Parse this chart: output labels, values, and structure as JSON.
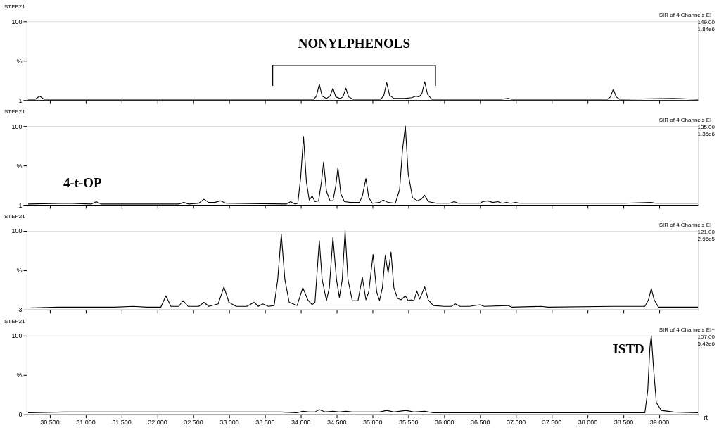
{
  "chart_data": [
    {
      "type": "line",
      "title": "STEP21",
      "subtitle": "SIR of 4 Channels EI+",
      "annotations": [
        "149.00",
        "1.84e6",
        "NONYLPHENOLS"
      ],
      "xlim": [
        30.18,
        39.54
      ],
      "ylim": [
        1,
        100
      ],
      "yticks": [
        100,
        {
          "value": 50.5,
          "label": "%"
        },
        1
      ],
      "tick_labels": "y",
      "xticks": [
        {
          "value": 30.5,
          "label": null
        },
        {
          "value": 31,
          "label": null
        },
        {
          "value": 31.5,
          "label": null
        },
        {
          "value": 32,
          "label": null
        },
        {
          "value": 32.5,
          "label": null
        },
        {
          "value": 33,
          "label": null
        },
        {
          "value": 33.5,
          "label": null
        },
        {
          "value": 34,
          "label": null
        },
        {
          "value": 34.5,
          "label": null
        },
        {
          "value": 35,
          "label": null
        },
        {
          "value": 35.5,
          "label": null
        },
        {
          "value": 36,
          "label": null
        },
        {
          "value": 36.5,
          "label": null
        },
        {
          "value": 37,
          "label": null
        },
        {
          "value": 37.5,
          "label": null
        },
        {
          "value": 38,
          "label": null
        },
        {
          "value": 38.5,
          "label": null
        },
        {
          "value": 39,
          "label": null
        }
      ],
      "grid": false,
      "legend": false,
      "series": [
        {
          "color": "#000000",
          "x": [
            30.2,
            30.3,
            30.36,
            30.42,
            31.5,
            32.5,
            33.5,
            34.18,
            34.22,
            34.26,
            34.3,
            34.36,
            34.41,
            34.45,
            34.49,
            34.55,
            34.59,
            34.63,
            34.67,
            34.73,
            35.12,
            35.16,
            35.2,
            35.24,
            35.3,
            35.45,
            35.55,
            35.61,
            35.65,
            35.69,
            35.73,
            35.77,
            35.83,
            36.8,
            36.89,
            36.95,
            38.28,
            38.32,
            38.36,
            38.4,
            38.45,
            39.2,
            39.54
          ],
          "values": [
            2,
            2,
            6,
            2,
            2,
            2,
            2,
            2,
            6,
            21,
            6,
            3,
            6,
            16,
            5,
            3,
            5,
            16,
            5,
            2,
            2,
            7,
            23,
            7,
            3,
            3,
            4,
            6,
            5,
            9,
            24,
            8,
            2,
            2,
            3,
            2,
            2,
            5,
            15,
            5,
            2,
            3,
            2
          ]
        }
      ]
    },
    {
      "type": "line",
      "title": "STEP21",
      "subtitle": "SIR of 4 Channels EI+",
      "annotations": [
        "135.00",
        "1.35e6",
        "4-t-OP"
      ],
      "xlim": [
        30.18,
        39.54
      ],
      "ylim": [
        1,
        100
      ],
      "yticks": [
        100,
        {
          "value": 50.5,
          "label": "%"
        },
        1
      ],
      "tick_labels": "y",
      "xticks": [
        {
          "value": 30.5,
          "label": null
        },
        {
          "value": 31,
          "label": null
        },
        {
          "value": 31.5,
          "label": null
        },
        {
          "value": 32,
          "label": null
        },
        {
          "value": 32.5,
          "label": null
        },
        {
          "value": 33,
          "label": null
        },
        {
          "value": 33.5,
          "label": null
        },
        {
          "value": 34,
          "label": null
        },
        {
          "value": 34.5,
          "label": null
        },
        {
          "value": 35,
          "label": null
        },
        {
          "value": 35.5,
          "label": null
        },
        {
          "value": 36,
          "label": null
        },
        {
          "value": 36.5,
          "label": null
        },
        {
          "value": 37,
          "label": null
        },
        {
          "value": 37.5,
          "label": null
        },
        {
          "value": 38,
          "label": null
        },
        {
          "value": 38.5,
          "label": null
        },
        {
          "value": 39,
          "label": null
        }
      ],
      "grid": false,
      "legend": false,
      "series": [
        {
          "color": "#000000",
          "x": [
            30.2,
            30.75,
            31.08,
            31.15,
            31.22,
            32.0,
            32.3,
            32.37,
            32.44,
            32.58,
            32.65,
            32.72,
            32.8,
            32.88,
            32.96,
            33.8,
            33.86,
            33.92,
            33.96,
            34.0,
            34.04,
            34.08,
            34.12,
            34.16,
            34.2,
            34.25,
            34.29,
            34.32,
            34.36,
            34.41,
            34.45,
            34.49,
            34.52,
            34.56,
            34.61,
            34.7,
            34.82,
            34.86,
            34.91,
            34.95,
            35.0,
            35.1,
            35.15,
            35.22,
            35.32,
            35.38,
            35.42,
            35.46,
            35.5,
            35.56,
            35.63,
            35.68,
            35.73,
            35.78,
            35.9,
            36.08,
            36.14,
            36.2,
            36.5,
            36.54,
            36.61,
            36.68,
            36.75,
            36.81,
            36.87,
            36.93,
            37.0,
            37.06,
            37.7,
            38.14,
            38.5,
            38.89,
            38.95,
            39.54
          ],
          "values": [
            2,
            3,
            2,
            5,
            2,
            2,
            2,
            4,
            2,
            3,
            8,
            4,
            4,
            6,
            3,
            2,
            5,
            2,
            3,
            35,
            87,
            30,
            7,
            12,
            5,
            6,
            30,
            55,
            18,
            6,
            6,
            25,
            48,
            15,
            5,
            4,
            4,
            12,
            34,
            10,
            3,
            4,
            7,
            4,
            3,
            20,
            70,
            100,
            40,
            10,
            6,
            8,
            13,
            5,
            3,
            3,
            5,
            3,
            3,
            5,
            6,
            4,
            5,
            3,
            4,
            3,
            4,
            3,
            3,
            3,
            3,
            4,
            3,
            3
          ]
        }
      ]
    },
    {
      "type": "line",
      "title": "STEP21",
      "subtitle": "SIR of 4 Channels EI+",
      "annotations": [
        "121.00",
        "2.96e5"
      ],
      "xlim": [
        30.18,
        39.54
      ],
      "ylim": [
        3,
        100
      ],
      "yticks": [
        100,
        {
          "value": 51.5,
          "label": "%"
        },
        3
      ],
      "tick_labels": "y",
      "xticks": [
        {
          "value": 30.5,
          "label": null
        },
        {
          "value": 31,
          "label": null
        },
        {
          "value": 31.5,
          "label": null
        },
        {
          "value": 32,
          "label": null
        },
        {
          "value": 32.5,
          "label": null
        },
        {
          "value": 33,
          "label": null
        },
        {
          "value": 33.5,
          "label": null
        },
        {
          "value": 34,
          "label": null
        },
        {
          "value": 34.5,
          "label": null
        },
        {
          "value": 35,
          "label": null
        },
        {
          "value": 35.5,
          "label": null
        },
        {
          "value": 36,
          "label": null
        },
        {
          "value": 36.5,
          "label": null
        },
        {
          "value": 37,
          "label": null
        },
        {
          "value": 37.5,
          "label": null
        },
        {
          "value": 38,
          "label": null
        },
        {
          "value": 38.5,
          "label": null
        },
        {
          "value": 39,
          "label": null
        }
      ],
      "grid": false,
      "legend": false,
      "series": [
        {
          "color": "#000000",
          "x": [
            30.2,
            30.62,
            31.4,
            31.67,
            31.85,
            32.05,
            32.12,
            32.19,
            32.3,
            32.36,
            32.43,
            32.58,
            32.65,
            32.72,
            32.85,
            32.93,
            33.0,
            33.1,
            33.25,
            33.35,
            33.41,
            33.47,
            33.55,
            33.63,
            33.68,
            33.73,
            33.78,
            33.84,
            33.95,
            34.03,
            34.1,
            34.16,
            34.2,
            34.23,
            34.26,
            34.3,
            34.36,
            34.4,
            34.45,
            34.5,
            34.54,
            34.58,
            34.62,
            34.66,
            34.72,
            34.8,
            34.86,
            34.91,
            34.95,
            35.01,
            35.06,
            35.1,
            35.14,
            35.18,
            35.22,
            35.26,
            35.3,
            35.35,
            35.4,
            35.46,
            35.5,
            35.54,
            35.58,
            35.62,
            35.66,
            35.73,
            35.78,
            35.85,
            36.0,
            36.1,
            36.16,
            36.22,
            36.35,
            36.5,
            36.56,
            36.89,
            36.95,
            37.35,
            37.45,
            38.36,
            38.8,
            38.85,
            38.89,
            38.93,
            38.99,
            39.54
          ],
          "values": [
            5,
            6,
            6,
            7,
            6,
            6,
            20,
            7,
            7,
            14,
            7,
            7,
            12,
            7,
            10,
            31,
            12,
            7,
            7,
            12,
            7,
            10,
            7,
            8,
            40,
            96,
            40,
            12,
            8,
            30,
            15,
            9,
            12,
            50,
            88,
            40,
            14,
            30,
            92,
            40,
            18,
            40,
            100,
            40,
            14,
            14,
            43,
            15,
            25,
            71,
            25,
            14,
            30,
            70,
            48,
            74,
            30,
            17,
            15,
            20,
            14,
            15,
            14,
            26,
            16,
            31,
            15,
            8,
            7,
            7,
            10,
            7,
            7,
            9,
            7,
            8,
            6,
            7,
            6,
            7,
            7,
            15,
            29,
            15,
            6,
            6
          ]
        }
      ]
    },
    {
      "type": "line",
      "title": "STEP21",
      "subtitle": "SIR of 4 Channels EI+",
      "annotations": [
        "107.00",
        "5.42e6",
        {
          "text": "ISTD",
          "x": 38.89,
          "y": 100
        }
      ],
      "xlabel": "rt",
      "xlim": [
        30.18,
        39.54
      ],
      "ylim": [
        0,
        100
      ],
      "yticks": [
        100,
        {
          "value": 50,
          "label": "%"
        },
        0
      ],
      "xticks": [
        {
          "value": 30.5,
          "label": "30.500"
        },
        {
          "value": 31,
          "label": "31.000"
        },
        {
          "value": 31.5,
          "label": "31.500"
        },
        {
          "value": 32,
          "label": "32.000"
        },
        {
          "value": 32.5,
          "label": "32.500"
        },
        {
          "value": 33,
          "label": "33.000"
        },
        {
          "value": 33.5,
          "label": "33.500"
        },
        {
          "value": 34,
          "label": "34.000"
        },
        {
          "value": 34.5,
          "label": "34.500"
        },
        {
          "value": 35,
          "label": "35.000"
        },
        {
          "value": 35.5,
          "label": "35.500"
        },
        {
          "value": 36,
          "label": "36.000"
        },
        {
          "value": 36.5,
          "label": "36.500"
        },
        {
          "value": 37,
          "label": "37.000"
        },
        {
          "value": 37.5,
          "label": "37.500"
        },
        {
          "value": 38,
          "label": "38.000"
        },
        {
          "value": 38.5,
          "label": "38.500"
        },
        {
          "value": 39,
          "label": "39.000"
        }
      ],
      "grid": false,
      "legend": false,
      "series": [
        {
          "color": "#000000",
          "x": [
            30.2,
            30.7,
            33.73,
            33.95,
            34.03,
            34.12,
            34.2,
            34.26,
            34.34,
            34.45,
            34.54,
            34.63,
            34.72,
            34.9,
            35.0,
            35.1,
            35.2,
            35.3,
            35.47,
            35.58,
            35.73,
            35.85,
            38.8,
            38.84,
            38.87,
            38.89,
            38.92,
            38.96,
            39.03,
            39.2,
            39.54
          ],
          "values": [
            2,
            3,
            3,
            2,
            4,
            3,
            3,
            6,
            3,
            4,
            3,
            4,
            3,
            3,
            3,
            3,
            5,
            3,
            5,
            3,
            4,
            2,
            2,
            30,
            85,
            100,
            60,
            15,
            5,
            3,
            2
          ]
        }
      ]
    }
  ]
}
